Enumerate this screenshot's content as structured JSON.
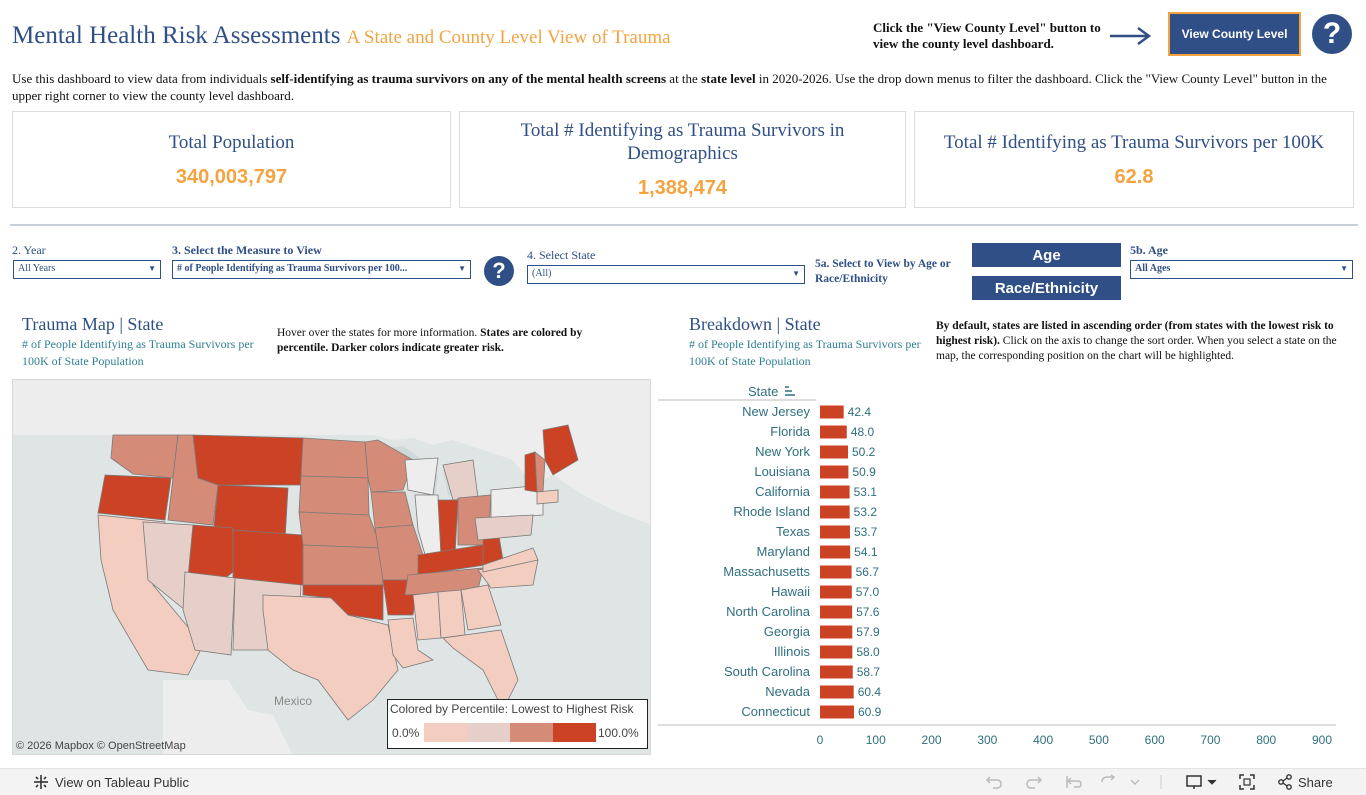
{
  "header": {
    "title": "Mental Health Risk Assessments",
    "subtitle": "A State and County Level View of Trauma",
    "hint": "Click the \"View County Level\" button to view the county level dashboard.",
    "county_button": "View County Level",
    "help_glyph": "?"
  },
  "description": {
    "p1": "Use this dashboard to view data from individuals ",
    "b1": "self-identifying as trauma survivors on any of the mental health screens",
    "p2": " at the ",
    "b2": "state level",
    "p3": " in 2020-2026. Use the drop down menus to filter the dashboard. Click the \"View County Level\" button in the upper right corner to view the county level dashboard."
  },
  "kpis": [
    {
      "label": "Total Population",
      "value": "340,003,797"
    },
    {
      "label": "Total # Identifying as Trauma Survivors in Demographics",
      "value": "1,388,474"
    },
    {
      "label": "Total # Identifying as Trauma Survivors per 100K",
      "value": "62.8"
    }
  ],
  "filters": {
    "year": {
      "label": "2. Year",
      "value": "All Years"
    },
    "measure": {
      "label": "3. Select the Measure to View",
      "value": "# of People Identifying as Trauma Survivors per 100..."
    },
    "state": {
      "label": "4. Select State",
      "value": "(All)"
    },
    "view_by": {
      "label": "5a. Select to View by Age or Race/Ethnicity",
      "age_btn": "Age",
      "race_btn": "Race/Ethnicity"
    },
    "age": {
      "label": "5b. Age",
      "value": "All Ages"
    }
  },
  "map_section": {
    "title": "Trauma Map | State",
    "subtitle": "# of People Identifying as Trauma Survivors per 100K of State Population",
    "note_plain": "Hover over the states for more information. ",
    "note_bold": "States are colored by percentile. Darker colors indicate greater risk.",
    "attribution": "© 2026 Mapbox  © OpenStreetMap",
    "mexico_label": "Mexico",
    "legend": {
      "title": "Colored by Percentile: Lowest to Highest Risk",
      "min": "0.0%",
      "max": "100.0%",
      "colors": [
        "#f2cdc0",
        "#e6cfc8",
        "#d48b78",
        "#cc4225"
      ]
    }
  },
  "chart_section": {
    "title": "Breakdown | State",
    "subtitle": "# of People Identifying as Trauma Survivors per 100K of State Population",
    "note_bold": "By default, states are listed in ascending order (from states with the lowest risk to highest risk).",
    "note_plain": " Click on the axis to change the sort order. When you select a state on the map, the corresponding position on the chart will be highlighted.",
    "axis_header": "State"
  },
  "chart_data": {
    "type": "bar",
    "orientation": "horizontal",
    "categories": [
      "New Jersey",
      "Florida",
      "New York",
      "Louisiana",
      "California",
      "Rhode Island",
      "Texas",
      "Maryland",
      "Massachusetts",
      "Hawaii",
      "North Carolina",
      "Georgia",
      "Illinois",
      "South Carolina",
      "Nevada",
      "Connecticut"
    ],
    "values": [
      42.4,
      48.0,
      50.2,
      50.9,
      53.1,
      53.2,
      53.7,
      54.1,
      56.7,
      57.0,
      57.6,
      57.9,
      58.0,
      58.7,
      60.4,
      60.9
    ],
    "xlim": [
      0,
      900
    ],
    "xticks": [
      0,
      100,
      200,
      300,
      400,
      500,
      600,
      700,
      800,
      900
    ],
    "bar_color": "#cc4225",
    "label_color": "#2f6f7f"
  },
  "footer": {
    "tableau_public": "View on Tableau Public",
    "share": "Share"
  }
}
